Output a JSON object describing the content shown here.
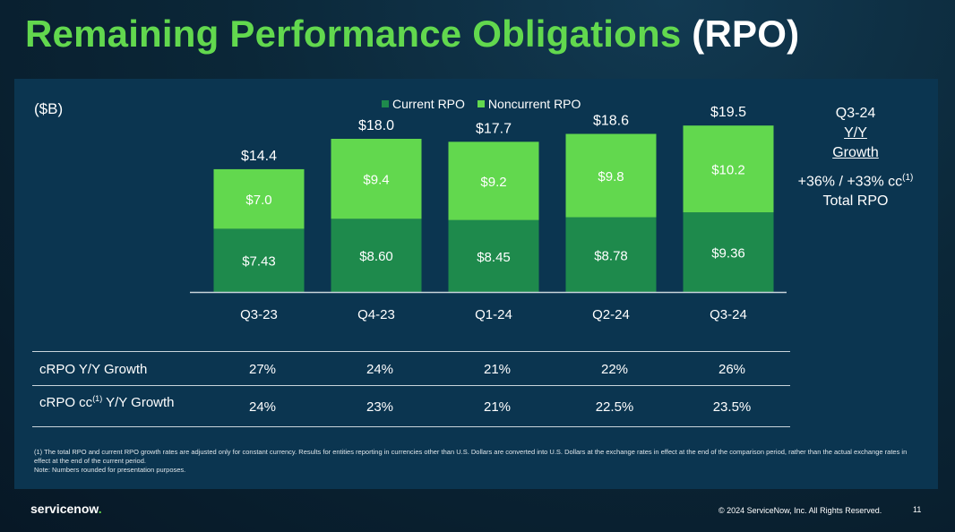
{
  "title": {
    "main": "Remaining Performance Obligations",
    "suffix": "(RPO)"
  },
  "unit_label": "($B)",
  "colors": {
    "current": "#1e8a4c",
    "noncurrent": "#62d84e",
    "title_green": "#62d84e"
  },
  "chart_data": {
    "type": "bar",
    "stacked": true,
    "categories": [
      "Q3-23",
      "Q4-23",
      "Q1-24",
      "Q2-24",
      "Q3-24"
    ],
    "series": [
      {
        "name": "Current RPO",
        "values": [
          7.43,
          8.6,
          8.45,
          8.78,
          9.36
        ],
        "labels": [
          "$7.43",
          "$8.60",
          "$8.45",
          "$8.78",
          "$9.36"
        ]
      },
      {
        "name": "Noncurrent RPO",
        "values": [
          7.0,
          9.4,
          9.2,
          9.8,
          10.2
        ],
        "labels": [
          "$7.0",
          "$9.4",
          "$9.2",
          "$9.8",
          "$10.2"
        ]
      }
    ],
    "totals": [
      14.4,
      18.0,
      17.7,
      18.6,
      19.5
    ],
    "total_labels": [
      "$14.4",
      "$18.0",
      "$17.7",
      "$18.6",
      "$19.5"
    ],
    "ylim": [
      0,
      20
    ],
    "legend_position": "top-center",
    "grid": false
  },
  "side_note": {
    "period": "Q3-24",
    "line1": "Y/Y",
    "line2": "Growth",
    "growth": "+36% / +33% cc",
    "growth_sup": "(1)",
    "label": "Total RPO"
  },
  "metrics": [
    {
      "label": "cRPO Y/Y Growth",
      "label_sup": "",
      "label_rest": "",
      "values": [
        "27%",
        "24%",
        "21%",
        "22%",
        "26%"
      ]
    },
    {
      "label": "cRPO cc",
      "label_sup": "(1)",
      "label_rest": " Y/Y Growth",
      "values": [
        "24%",
        "23%",
        "21%",
        "22.5%",
        "23.5%"
      ]
    }
  ],
  "footnotes": {
    "note1": "(1) The total RPO and current RPO growth rates are adjusted only for constant currency. Results for entities reporting in currencies other than U.S. Dollars are converted into U.S. Dollars at the exchange rates in effect at the end of the comparison period, rather than the actual exchange rates in effect at the end of the current period.",
    "note2": "Note: Numbers rounded for presentation purposes."
  },
  "logo": {
    "text": "servicenow",
    "dot": "."
  },
  "copyright": "© 2024 ServiceNow, Inc. All Rights Reserved.",
  "page_number": "11"
}
